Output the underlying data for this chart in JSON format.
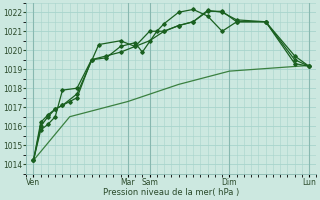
{
  "background_color": "#cce8e0",
  "grid_color": "#a8d4cc",
  "vline_color": "#88b8b0",
  "line_color_dark": "#1a6020",
  "line_color_light": "#3a8040",
  "xlabel": "Pression niveau de la mer( hPa )",
  "ylim": [
    1013.5,
    1022.5
  ],
  "yticks": [
    1014,
    1015,
    1016,
    1017,
    1018,
    1019,
    1020,
    1021,
    1022
  ],
  "xlim": [
    0,
    20
  ],
  "xtick_labels": [
    "Ven",
    "Mar",
    "Sam",
    "Dim",
    "Lun"
  ],
  "xtick_positions": [
    0.5,
    7.0,
    8.5,
    14.0,
    19.5
  ],
  "vline_positions": [
    0.5,
    7.0,
    8.5,
    14.0,
    19.5
  ],
  "series1_x": [
    0.5,
    1.0,
    1.5,
    2.0,
    2.5,
    3.5,
    4.5,
    5.5,
    6.5,
    7.5,
    8.0,
    9.0,
    9.5,
    10.5,
    11.5,
    12.5,
    13.5,
    14.5,
    16.5,
    18.5,
    19.5
  ],
  "series1_y": [
    1014.2,
    1015.8,
    1016.1,
    1016.5,
    1017.9,
    1018.0,
    1019.5,
    1019.6,
    1020.2,
    1020.4,
    1019.9,
    1021.0,
    1021.4,
    1022.0,
    1022.15,
    1021.8,
    1021.0,
    1021.5,
    1021.5,
    1019.3,
    1019.15
  ],
  "series2_x": [
    0.5,
    1.0,
    1.5,
    2.0,
    2.5,
    3.5,
    5.0,
    6.5,
    7.5,
    8.5,
    9.5,
    10.5,
    11.5,
    12.5,
    13.5,
    14.5,
    16.5,
    18.5,
    19.5
  ],
  "series2_y": [
    1014.2,
    1016.0,
    1016.5,
    1016.9,
    1017.1,
    1017.7,
    1020.3,
    1020.5,
    1020.2,
    1021.0,
    1021.0,
    1021.3,
    1021.5,
    1022.1,
    1022.0,
    1021.6,
    1021.5,
    1019.7,
    1019.15
  ],
  "series3_x": [
    0.5,
    1.0,
    1.5,
    2.0,
    2.5,
    3.0,
    3.5,
    4.5,
    5.5,
    6.5,
    7.5,
    8.5,
    9.5,
    10.5,
    11.5,
    12.5,
    13.5,
    14.5,
    16.5,
    18.5,
    19.5
  ],
  "series3_y": [
    1014.2,
    1016.2,
    1016.6,
    1016.9,
    1017.1,
    1017.3,
    1017.5,
    1019.5,
    1019.7,
    1019.9,
    1020.2,
    1020.5,
    1021.0,
    1021.3,
    1021.5,
    1022.05,
    1022.05,
    1021.5,
    1021.5,
    1019.5,
    1019.15
  ],
  "series4_x": [
    0.5,
    3.0,
    7.0,
    10.5,
    14.0,
    19.5
  ],
  "series4_y": [
    1014.2,
    1016.5,
    1017.3,
    1018.2,
    1018.9,
    1019.2
  ]
}
